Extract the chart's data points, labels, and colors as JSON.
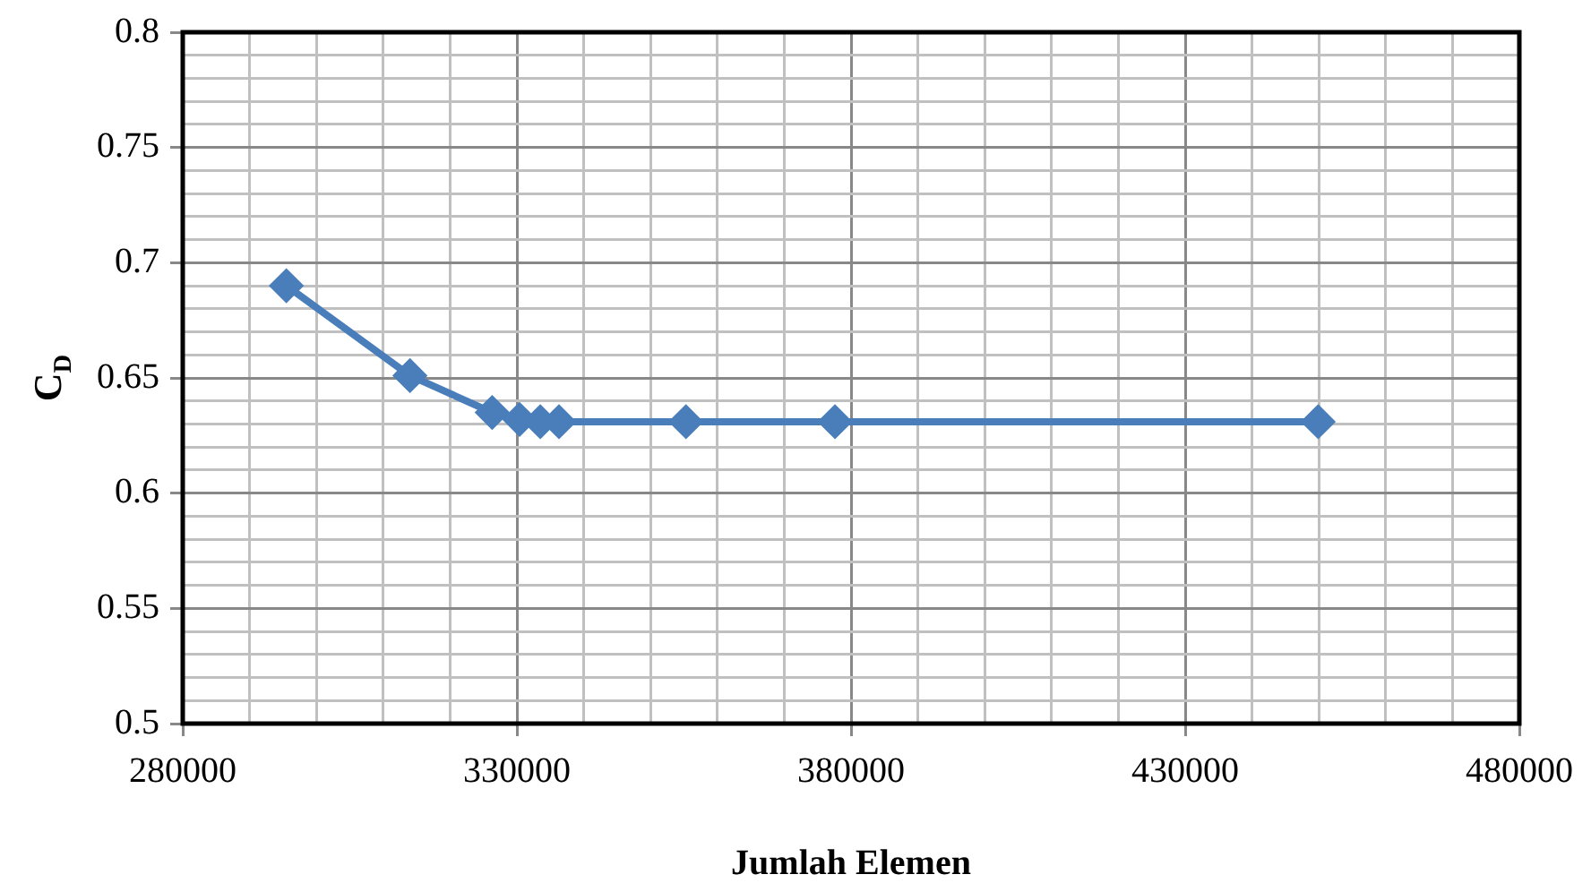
{
  "chart_data": {
    "type": "line",
    "xlabel": "Jumlah Elemen",
    "ylabel": "C$_{D}$",
    "xlim": [
      280000,
      480000
    ],
    "xticks": [
      280000,
      {
        "value": 290000,
        "label": null
      },
      {
        "value": 300000,
        "label": null
      },
      {
        "value": 310000,
        "label": null
      },
      {
        "value": 320000,
        "label": null
      },
      330000,
      {
        "value": 340000,
        "label": null
      },
      {
        "value": 350000,
        "label": null
      },
      {
        "value": 360000,
        "label": null
      },
      {
        "value": 370000,
        "label": null
      },
      380000,
      {
        "value": 390000,
        "label": null
      },
      {
        "value": 400000,
        "label": null
      },
      {
        "value": 410000,
        "label": null
      },
      {
        "value": 420000,
        "label": null
      },
      430000,
      {
        "value": 440000,
        "label": null
      },
      {
        "value": 450000,
        "label": null
      },
      {
        "value": 460000,
        "label": null
      },
      {
        "value": 470000,
        "label": null
      },
      480000
    ],
    "ylim": [
      0.5,
      0.8
    ],
    "yticks": [
      0.5,
      {
        "value": 0.51,
        "label": null
      },
      {
        "value": 0.52,
        "label": null
      },
      {
        "value": 0.53,
        "label": null
      },
      {
        "value": 0.54,
        "label": null
      },
      0.55,
      {
        "value": 0.56,
        "label": null
      },
      {
        "value": 0.57,
        "label": null
      },
      {
        "value": 0.58,
        "label": null
      },
      {
        "value": 0.59,
        "label": null
      },
      0.6,
      {
        "value": 0.61,
        "label": null
      },
      {
        "value": 0.62,
        "label": null
      },
      {
        "value": 0.63,
        "label": null
      },
      {
        "value": 0.64,
        "label": null
      },
      0.65,
      {
        "value": 0.66,
        "label": null
      },
      {
        "value": 0.67,
        "label": null
      },
      {
        "value": 0.68,
        "label": null
      },
      {
        "value": 0.69,
        "label": null
      },
      0.7,
      {
        "value": 0.71,
        "label": null
      },
      {
        "value": 0.72,
        "label": null
      },
      {
        "value": 0.73,
        "label": null
      },
      {
        "value": 0.74,
        "label": null
      },
      0.75,
      {
        "value": 0.76,
        "label": null
      },
      {
        "value": 0.77,
        "label": null
      },
      {
        "value": 0.78,
        "label": null
      },
      {
        "value": 0.79,
        "label": null
      },
      0.8
    ],
    "grid": true,
    "legend": false,
    "marker": "diamond",
    "line_style": "solid",
    "series": [
      {
        "color": "#4a7ebb",
        "x": [
          295500,
          314000,
          326300,
          330400,
          333500,
          336300,
          355300,
          377600,
          449900
        ],
        "values": [
          0.69,
          0.651,
          0.635,
          0.632,
          0.631,
          0.631,
          0.631,
          0.631,
          0.631
        ]
      }
    ]
  }
}
